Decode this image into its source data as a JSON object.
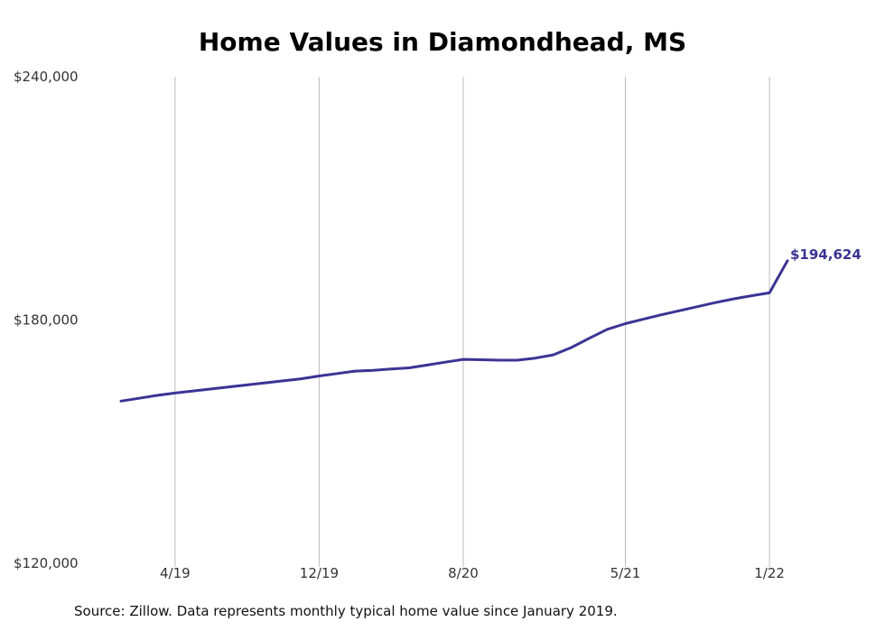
{
  "chart_data": {
    "type": "line",
    "title": "Home Values in Diamondhead, MS",
    "xlabel": "",
    "ylabel": "",
    "ylim": [
      120000,
      240000
    ],
    "y_ticks": [
      {
        "value": 240000,
        "label": "$240,000"
      },
      {
        "value": 180000,
        "label": "$180,000"
      },
      {
        "value": 120000,
        "label": "$120,000"
      }
    ],
    "x_ticks": [
      {
        "date": "2019-04",
        "label": "4/19"
      },
      {
        "date": "2019-12",
        "label": "12/19"
      },
      {
        "date": "2020-08",
        "label": "8/20"
      },
      {
        "date": "2021-05",
        "label": "5/21"
      },
      {
        "date": "2022-01",
        "label": "1/22"
      }
    ],
    "x_range": [
      "2019-01",
      "2022-02"
    ],
    "grid": "vertical at x ticks",
    "series": [
      {
        "color": "#3b3494",
        "x": [
          "2019-01",
          "2019-02",
          "2019-03",
          "2019-04",
          "2019-05",
          "2019-06",
          "2019-07",
          "2019-08",
          "2019-09",
          "2019-10",
          "2019-11",
          "2019-12",
          "2020-01",
          "2020-02",
          "2020-03",
          "2020-04",
          "2020-05",
          "2020-06",
          "2020-07",
          "2020-08",
          "2020-09",
          "2020-10",
          "2020-11",
          "2020-12",
          "2021-01",
          "2021-02",
          "2021-03",
          "2021-04",
          "2021-05",
          "2021-06",
          "2021-07",
          "2021-08",
          "2021-09",
          "2021-10",
          "2021-11",
          "2021-12",
          "2022-01",
          "2022-02"
        ],
        "values": [
          160000,
          160700,
          161400,
          162000,
          162500,
          163000,
          163500,
          164000,
          164500,
          165000,
          165500,
          166200,
          166800,
          167400,
          167600,
          167900,
          168200,
          168900,
          169600,
          170300,
          170200,
          170100,
          170100,
          170600,
          171400,
          173200,
          175500,
          177700,
          179100,
          180200,
          181300,
          182300,
          183300,
          184300,
          185200,
          186000,
          186700,
          194624
        ]
      }
    ],
    "annotations": [
      {
        "x": "2022-02",
        "value": 194624,
        "label": "$194,624"
      }
    ],
    "source": "Source: Zillow. Data represents monthly typical home value since January 2019."
  },
  "colors": {
    "line": "#3b3494",
    "grid": "#bdbdbd",
    "tick_text": "#333333",
    "title": "#000000"
  }
}
